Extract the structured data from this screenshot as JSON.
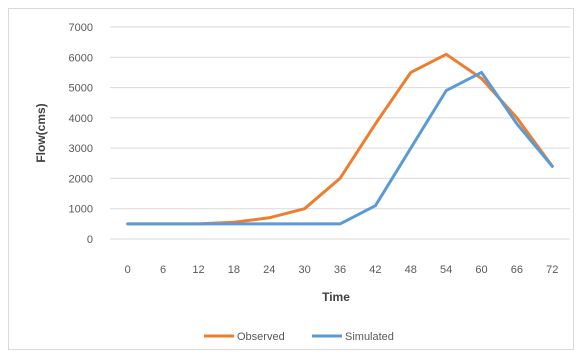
{
  "chart_data": {
    "type": "line",
    "title": "",
    "xlabel": "Time",
    "ylabel": "Flow(cms)",
    "x": [
      0,
      6,
      12,
      18,
      24,
      30,
      36,
      42,
      48,
      54,
      60,
      66,
      72
    ],
    "ylim": [
      0,
      7000
    ],
    "yticks": [
      0,
      1000,
      2000,
      3000,
      4000,
      5000,
      6000,
      7000
    ],
    "grid": "horizontal",
    "legend": "bottom",
    "series": [
      {
        "name": "Observed",
        "color": "#ED7D31",
        "values": [
          500,
          500,
          500,
          550,
          700,
          1000,
          2000,
          3800,
          5500,
          6100,
          5300,
          4000,
          2400
        ]
      },
      {
        "name": "Simulated",
        "color": "#5B9BD5",
        "values": [
          500,
          500,
          500,
          500,
          500,
          500,
          500,
          1100,
          3000,
          4900,
          5500,
          3800,
          2400
        ]
      }
    ]
  }
}
